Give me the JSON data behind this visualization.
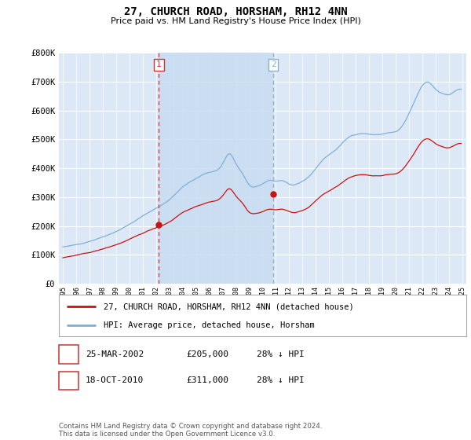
{
  "title": "27, CHURCH ROAD, HORSHAM, RH12 4NN",
  "subtitle": "Price paid vs. HM Land Registry's House Price Index (HPI)",
  "ylim": [
    0,
    800000
  ],
  "yticks": [
    0,
    100000,
    200000,
    300000,
    400000,
    500000,
    600000,
    700000,
    800000
  ],
  "ytick_labels": [
    "£0",
    "£100K",
    "£200K",
    "£300K",
    "£400K",
    "£500K",
    "£600K",
    "£700K",
    "£800K"
  ],
  "plot_bg_color": "#dce8f5",
  "grid_color": "#ffffff",
  "hpi_color": "#7fb0d8",
  "price_color": "#cc1111",
  "vline1_color": "#cc3333",
  "vline2_color": "#8ab0cc",
  "shade_color": "#c8dcf0",
  "transaction1_x": 2002.21,
  "transaction1_y": 205000,
  "transaction1_label": "25-MAR-2002",
  "transaction1_price": "£205,000",
  "transaction1_hpi": "28% ↓ HPI",
  "transaction2_x": 2010.8,
  "transaction2_y": 311000,
  "transaction2_label": "18-OCT-2010",
  "transaction2_price": "£311,000",
  "transaction2_hpi": "28% ↓ HPI",
  "legend_line1": "27, CHURCH ROAD, HORSHAM, RH12 4NN (detached house)",
  "legend_line2": "HPI: Average price, detached house, Horsham",
  "footnote": "Contains HM Land Registry data © Crown copyright and database right 2024.\nThis data is licensed under the Open Government Licence v3.0.",
  "xmin": 1995.0,
  "xmax": 2025.3
}
